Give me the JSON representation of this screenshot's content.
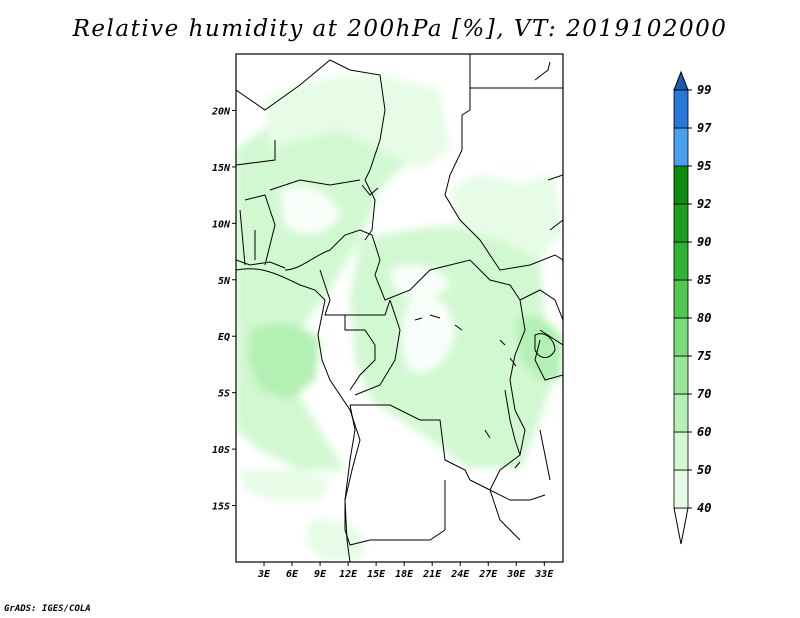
{
  "title": "Relative humidity at 200hPa [%], VT: 2019102000",
  "credit": "GrADS: IGES/COLA",
  "map": {
    "lon_range": [
      0,
      35
    ],
    "lat_range": [
      -20,
      25
    ],
    "lat_ticks": [
      {
        "value": 20,
        "label": "20N"
      },
      {
        "value": 15,
        "label": "15N"
      },
      {
        "value": 10,
        "label": "10N"
      },
      {
        "value": 5,
        "label": "5N"
      },
      {
        "value": 0,
        "label": "EQ"
      },
      {
        "value": -5,
        "label": "5S"
      },
      {
        "value": -10,
        "label": "10S"
      },
      {
        "value": -15,
        "label": "15S"
      }
    ],
    "lon_ticks": [
      {
        "value": 3,
        "label": "3E"
      },
      {
        "value": 6,
        "label": "6E"
      },
      {
        "value": 9,
        "label": "9E"
      },
      {
        "value": 12,
        "label": "12E"
      },
      {
        "value": 15,
        "label": "15E"
      },
      {
        "value": 18,
        "label": "18E"
      },
      {
        "value": 21,
        "label": "21E"
      },
      {
        "value": 24,
        "label": "24E"
      },
      {
        "value": 27,
        "label": "27E"
      },
      {
        "value": 30,
        "label": "30E"
      },
      {
        "value": 33,
        "label": "33E"
      }
    ]
  },
  "colorbar": {
    "levels": [
      "40",
      "50",
      "60",
      "70",
      "75",
      "80",
      "85",
      "90",
      "92",
      "95",
      "97",
      "99"
    ],
    "colors": [
      "#ffffff",
      "#e6fce6",
      "#d2f8d2",
      "#b4f0b4",
      "#96e696",
      "#78dc78",
      "#50c850",
      "#32b432",
      "#1ea01e",
      "#0f8c0f",
      "#4a9ef0",
      "#2878dc",
      "#1e5ab4"
    ]
  },
  "colors": {
    "border": "#000000",
    "background": "#ffffff"
  }
}
